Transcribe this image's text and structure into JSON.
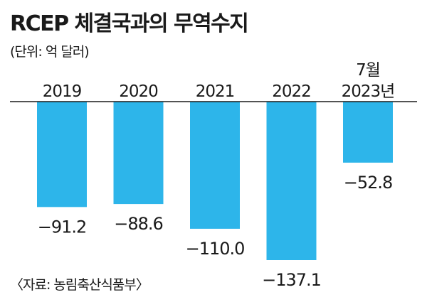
{
  "title": "RCEP 체결국과의 무역수지",
  "unit": "(단위: 억 달러)",
  "source": "〈자료: 농림축산식품부〉",
  "chart_data": {
    "type": "bar",
    "categories": [
      [
        "2019"
      ],
      [
        "2020"
      ],
      [
        "2021"
      ],
      [
        "2022"
      ],
      [
        "7월",
        "2023년"
      ]
    ],
    "values": [
      -91.2,
      -88.6,
      -110.0,
      -137.1,
      -52.8
    ],
    "value_labels": [
      "−91.2",
      "−88.6",
      "−110.0",
      "−137.1",
      "−52.8"
    ],
    "ylim": [
      -137.1,
      0
    ],
    "bar_color": "#2db5ea",
    "axis_color": "#1a1a1a",
    "grid": false
  }
}
